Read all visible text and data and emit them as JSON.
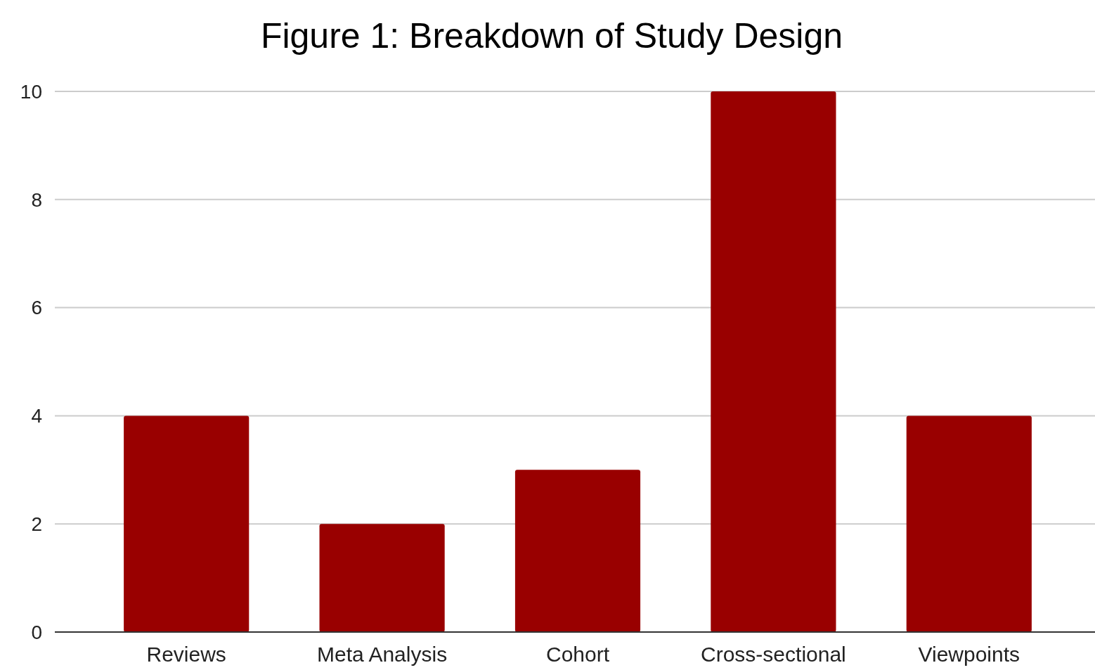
{
  "chart_data": {
    "type": "bar",
    "title": "Figure 1: Breakdown of Study Design",
    "categories": [
      "Reviews",
      "Meta Analysis",
      "Cohort",
      "Cross-sectional",
      "Viewpoints"
    ],
    "values": [
      4,
      2,
      3,
      10,
      4
    ],
    "color": "#990000",
    "ylim": [
      0,
      10
    ],
    "yticks": [
      0,
      2,
      4,
      6,
      8,
      10
    ],
    "grid": "y"
  }
}
